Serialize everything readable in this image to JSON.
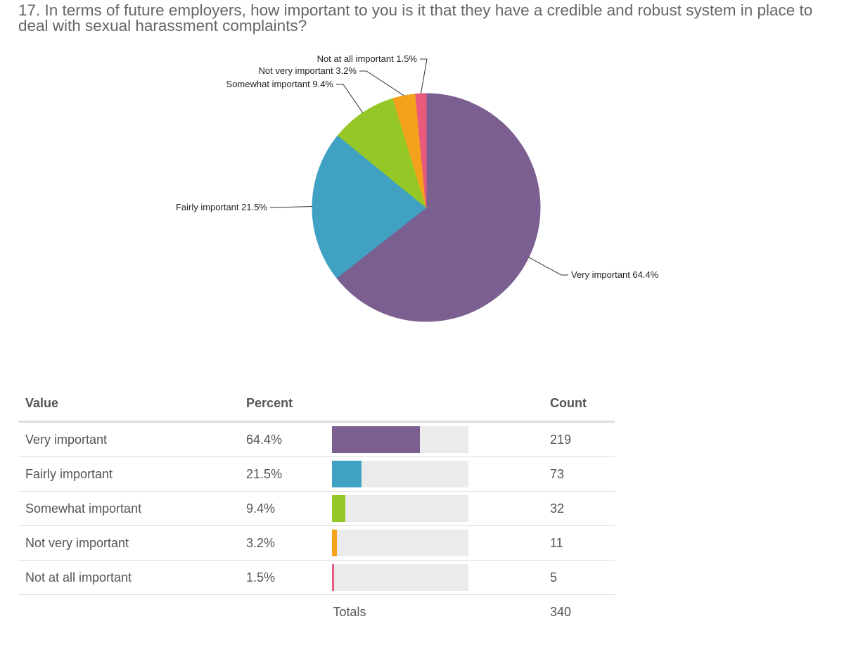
{
  "question": {
    "text": "17. In terms of future employers, how important to you is it that they have a credible and robust system in place to deal with sexual harassment complaints?"
  },
  "chart_data": {
    "type": "pie",
    "title": "17. In terms of future employers, how important to you is it that they have a credible and robust system in place to deal with sexual harassment complaints?",
    "slices": [
      {
        "label": "Very important",
        "percent": 64.4,
        "display": "Very important 64.4%",
        "color": "#7b5f91"
      },
      {
        "label": "Fairly important",
        "percent": 21.5,
        "display": "Fairly important 21.5%",
        "color": "#41a1c3"
      },
      {
        "label": "Somewhat important",
        "percent": 9.4,
        "display": "Somewhat important 9.4%",
        "color": "#95c826"
      },
      {
        "label": "Not very important",
        "percent": 3.2,
        "display": "Not very important 3.2%",
        "color": "#f4a21c"
      },
      {
        "label": "Not at all important",
        "percent": 1.5,
        "display": "Not at all important 1.5%",
        "color": "#ea5a7c"
      }
    ],
    "start_angle_deg": 0,
    "direction": "clockwise"
  },
  "table": {
    "headers": {
      "value": "Value",
      "percent": "Percent",
      "count": "Count"
    },
    "rows": [
      {
        "value": "Very important",
        "percent": "64.4%",
        "fraction": 0.644,
        "count": "219",
        "color": "#7b5f91"
      },
      {
        "value": "Fairly important",
        "percent": "21.5%",
        "fraction": 0.215,
        "count": "73",
        "color": "#41a1c3"
      },
      {
        "value": "Somewhat important",
        "percent": "9.4%",
        "fraction": 0.094,
        "count": "32",
        "color": "#95c826"
      },
      {
        "value": "Not very important",
        "percent": "3.2%",
        "fraction": 0.032,
        "count": "11",
        "color": "#f4a21c"
      },
      {
        "value": "Not at all important",
        "percent": "1.5%",
        "fraction": 0.015,
        "count": "5",
        "color": "#ea5a7c"
      }
    ],
    "totals": {
      "label": "Totals",
      "count": "340"
    }
  }
}
